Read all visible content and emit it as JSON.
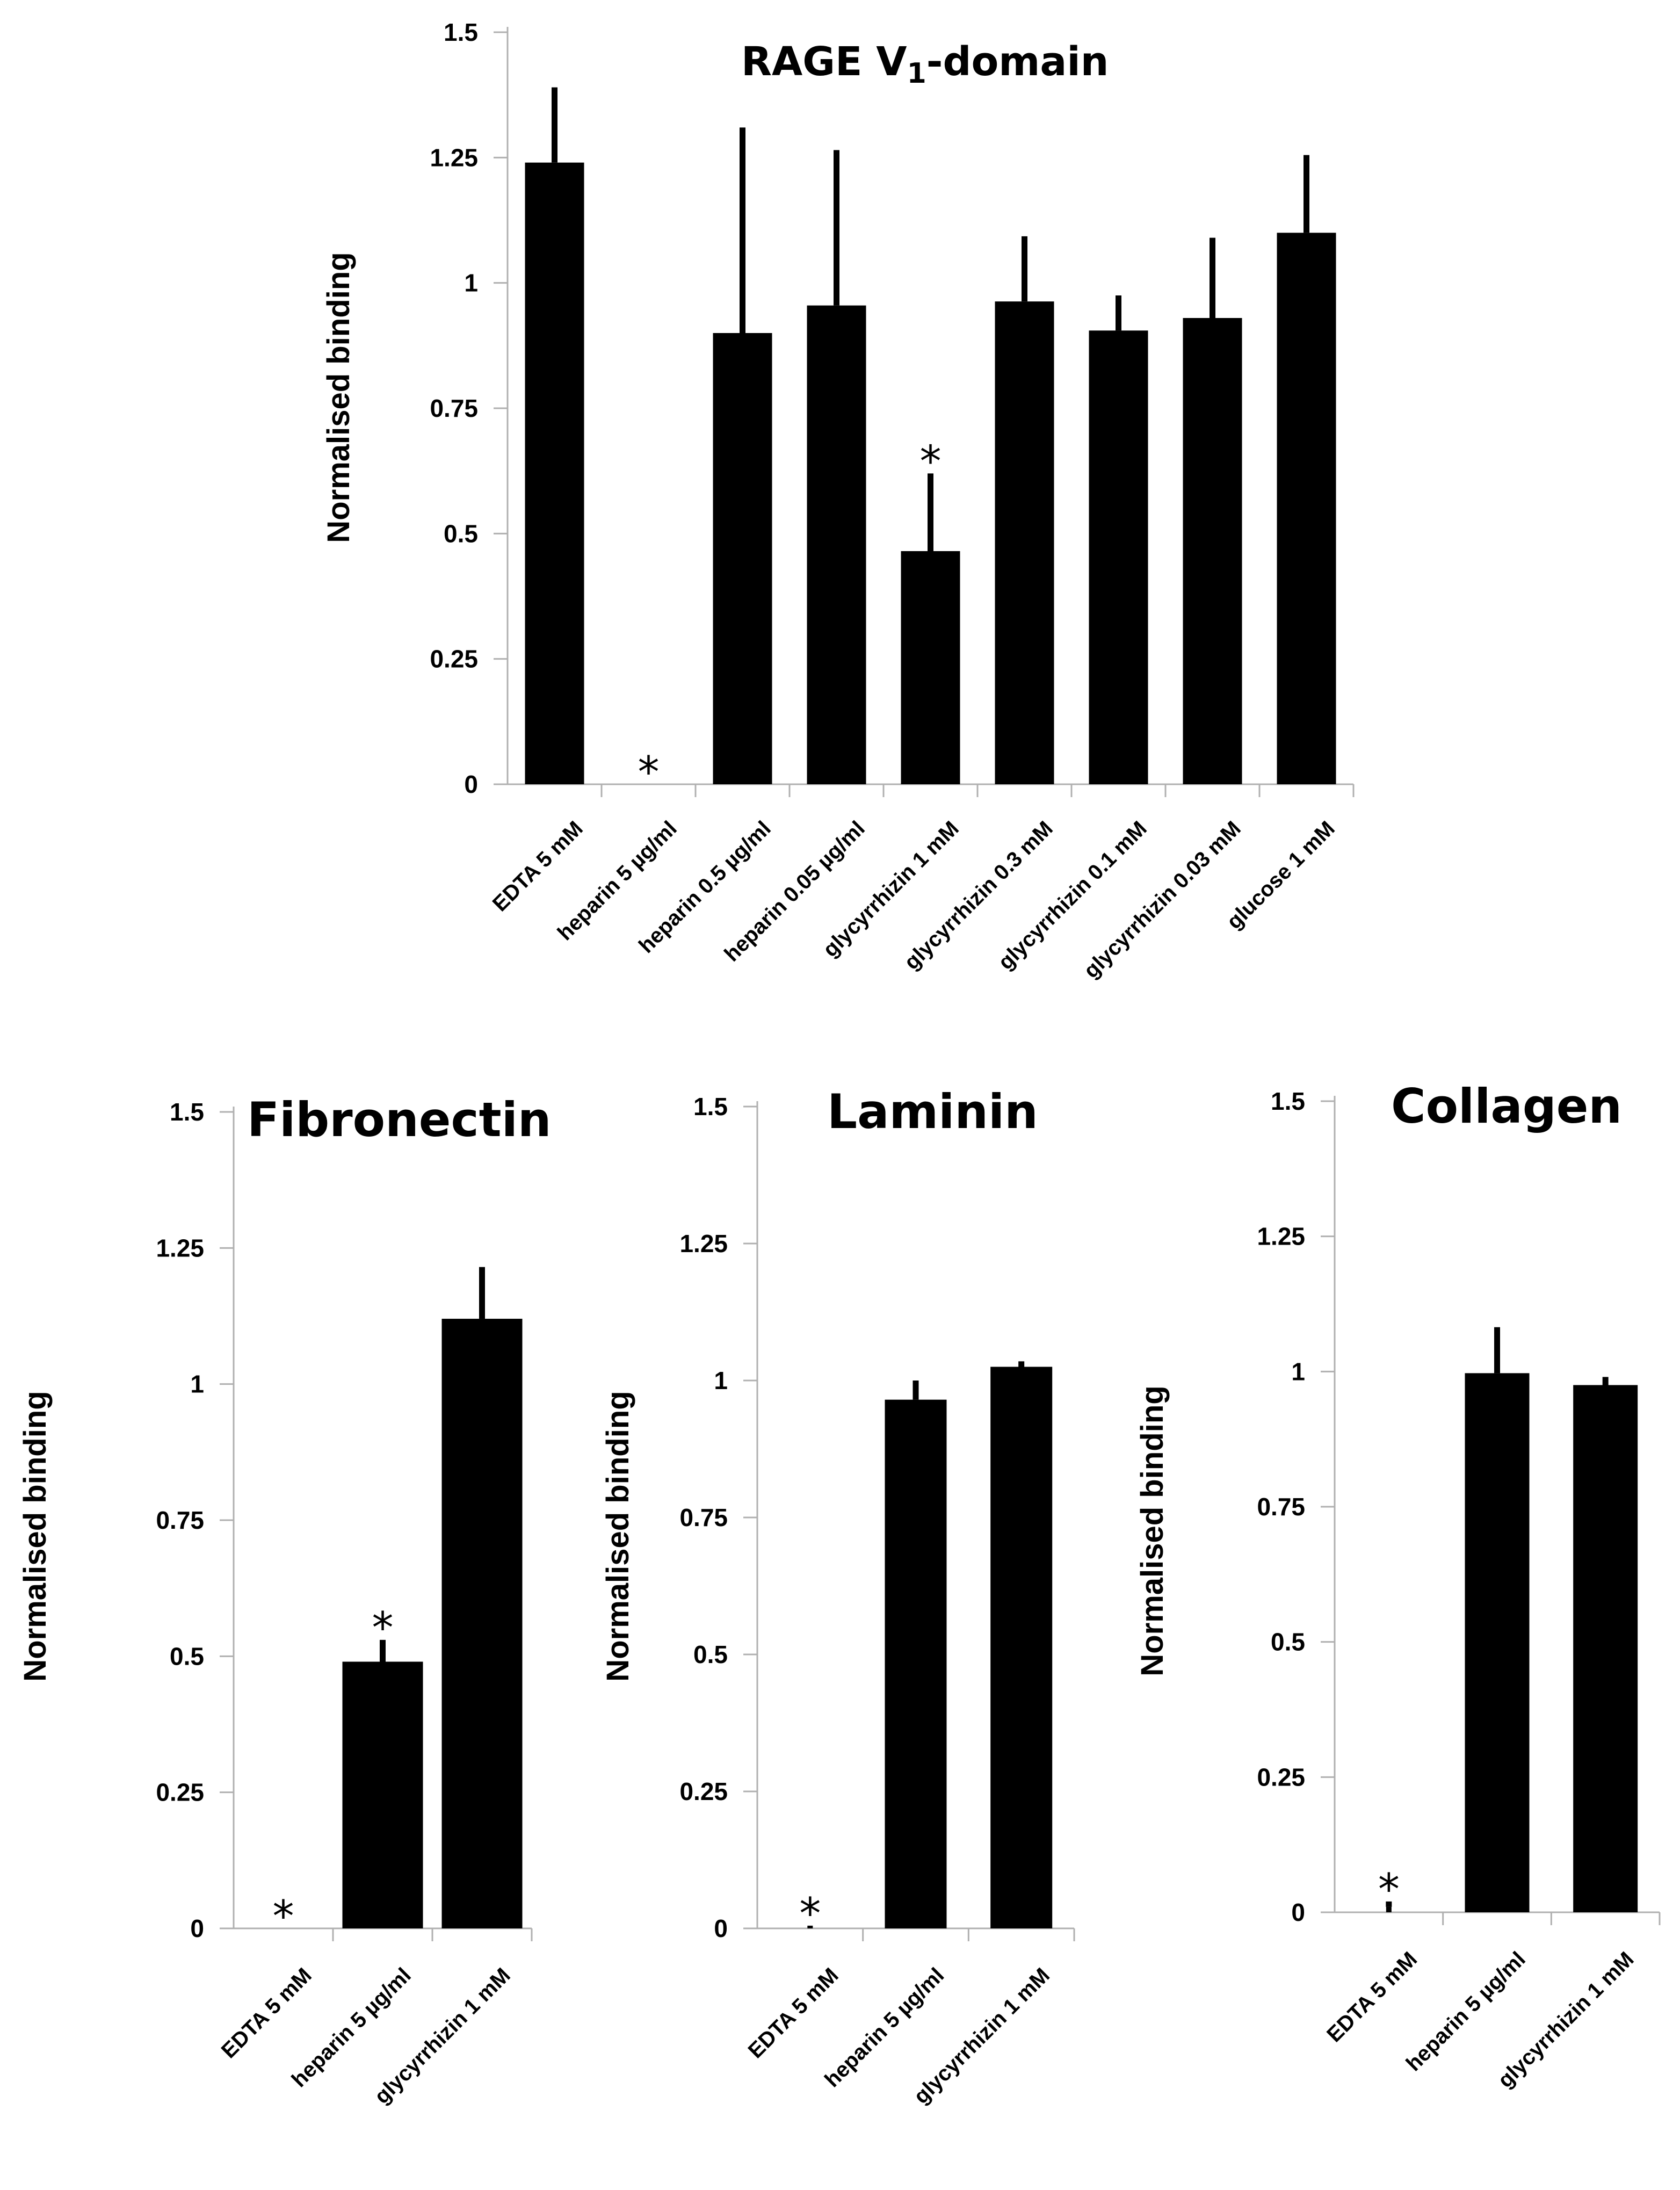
{
  "chart_data": [
    {
      "id": "rage",
      "type": "bar",
      "title": "RAGE V1-domain",
      "title_main": "RAGE V",
      "title_sub": "1",
      "title_rest": "-domain",
      "xlabel": "",
      "ylabel": "Normalised binding",
      "ylim": [
        0,
        1.5
      ],
      "yticks": [
        "0",
        "0.25",
        "0.5",
        "0.75",
        "1",
        "1.25",
        "1.5"
      ],
      "categories": [
        "EDTA 5 mM",
        "heparin 5 µg/ml",
        "heparin 0.5 µg/ml",
        "heparin 0.05 µg/ml",
        "glycyrrhizin 1 mM",
        "glycyrrhizin 0.3 mM",
        "glycyrrhizin 0.1 mM",
        "glycyrrhizin 0.03 mM",
        "glucose 1 mM"
      ],
      "values": [
        1.24,
        0.0,
        0.9,
        0.955,
        0.465,
        0.963,
        0.905,
        0.93,
        1.1
      ],
      "errors": [
        0.15,
        0.0,
        0.41,
        0.31,
        0.155,
        0.13,
        0.07,
        0.16,
        0.155
      ],
      "significance": [
        "",
        "*",
        "",
        "",
        "*",
        "",
        "",
        "",
        ""
      ]
    },
    {
      "id": "fibronectin",
      "type": "bar",
      "title": "Fibronectin",
      "xlabel": "",
      "ylabel": "Normalised binding",
      "ylim": [
        0,
        1.5
      ],
      "yticks": [
        "0",
        "0.25",
        "0.5",
        "0.75",
        "1",
        "1.25",
        "1.5"
      ],
      "categories": [
        "EDTA 5 mM",
        "heparin 5 µg/ml",
        "glycyrrhizin 1 mM"
      ],
      "values": [
        0.0,
        0.49,
        1.12
      ],
      "errors": [
        0.0,
        0.04,
        0.095
      ],
      "significance": [
        "*",
        "*",
        ""
      ]
    },
    {
      "id": "laminin",
      "type": "bar",
      "title": "Laminin",
      "xlabel": "",
      "ylabel": "Normalised binding",
      "ylim": [
        0,
        1.5
      ],
      "yticks": [
        "0",
        "0.25",
        "0.5",
        "0.75",
        "1",
        "1.25",
        "1.5"
      ],
      "categories": [
        "EDTA 5 mM",
        "heparin 5 µg/ml",
        "glycyrrhizin 1 mM"
      ],
      "values": [
        0.005,
        0.965,
        1.025
      ],
      "errors": [
        0.0,
        0.035,
        0.01
      ],
      "significance": [
        "*",
        "",
        ""
      ]
    },
    {
      "id": "collagen",
      "type": "bar",
      "title": "Collagen",
      "xlabel": "",
      "ylabel": "Normalised binding",
      "ylim": [
        0,
        1.5
      ],
      "yticks": [
        "0",
        "0.25",
        "0.5",
        "0.75",
        "1",
        "1.25",
        "1.5"
      ],
      "categories": [
        "EDTA 5 mM",
        "heparin 5 µg/ml",
        "glycyrrhizin 1 mM"
      ],
      "values": [
        0.01,
        0.997,
        0.975
      ],
      "errors": [
        0.01,
        0.085,
        0.015
      ],
      "significance": [
        "*",
        "",
        ""
      ]
    }
  ]
}
